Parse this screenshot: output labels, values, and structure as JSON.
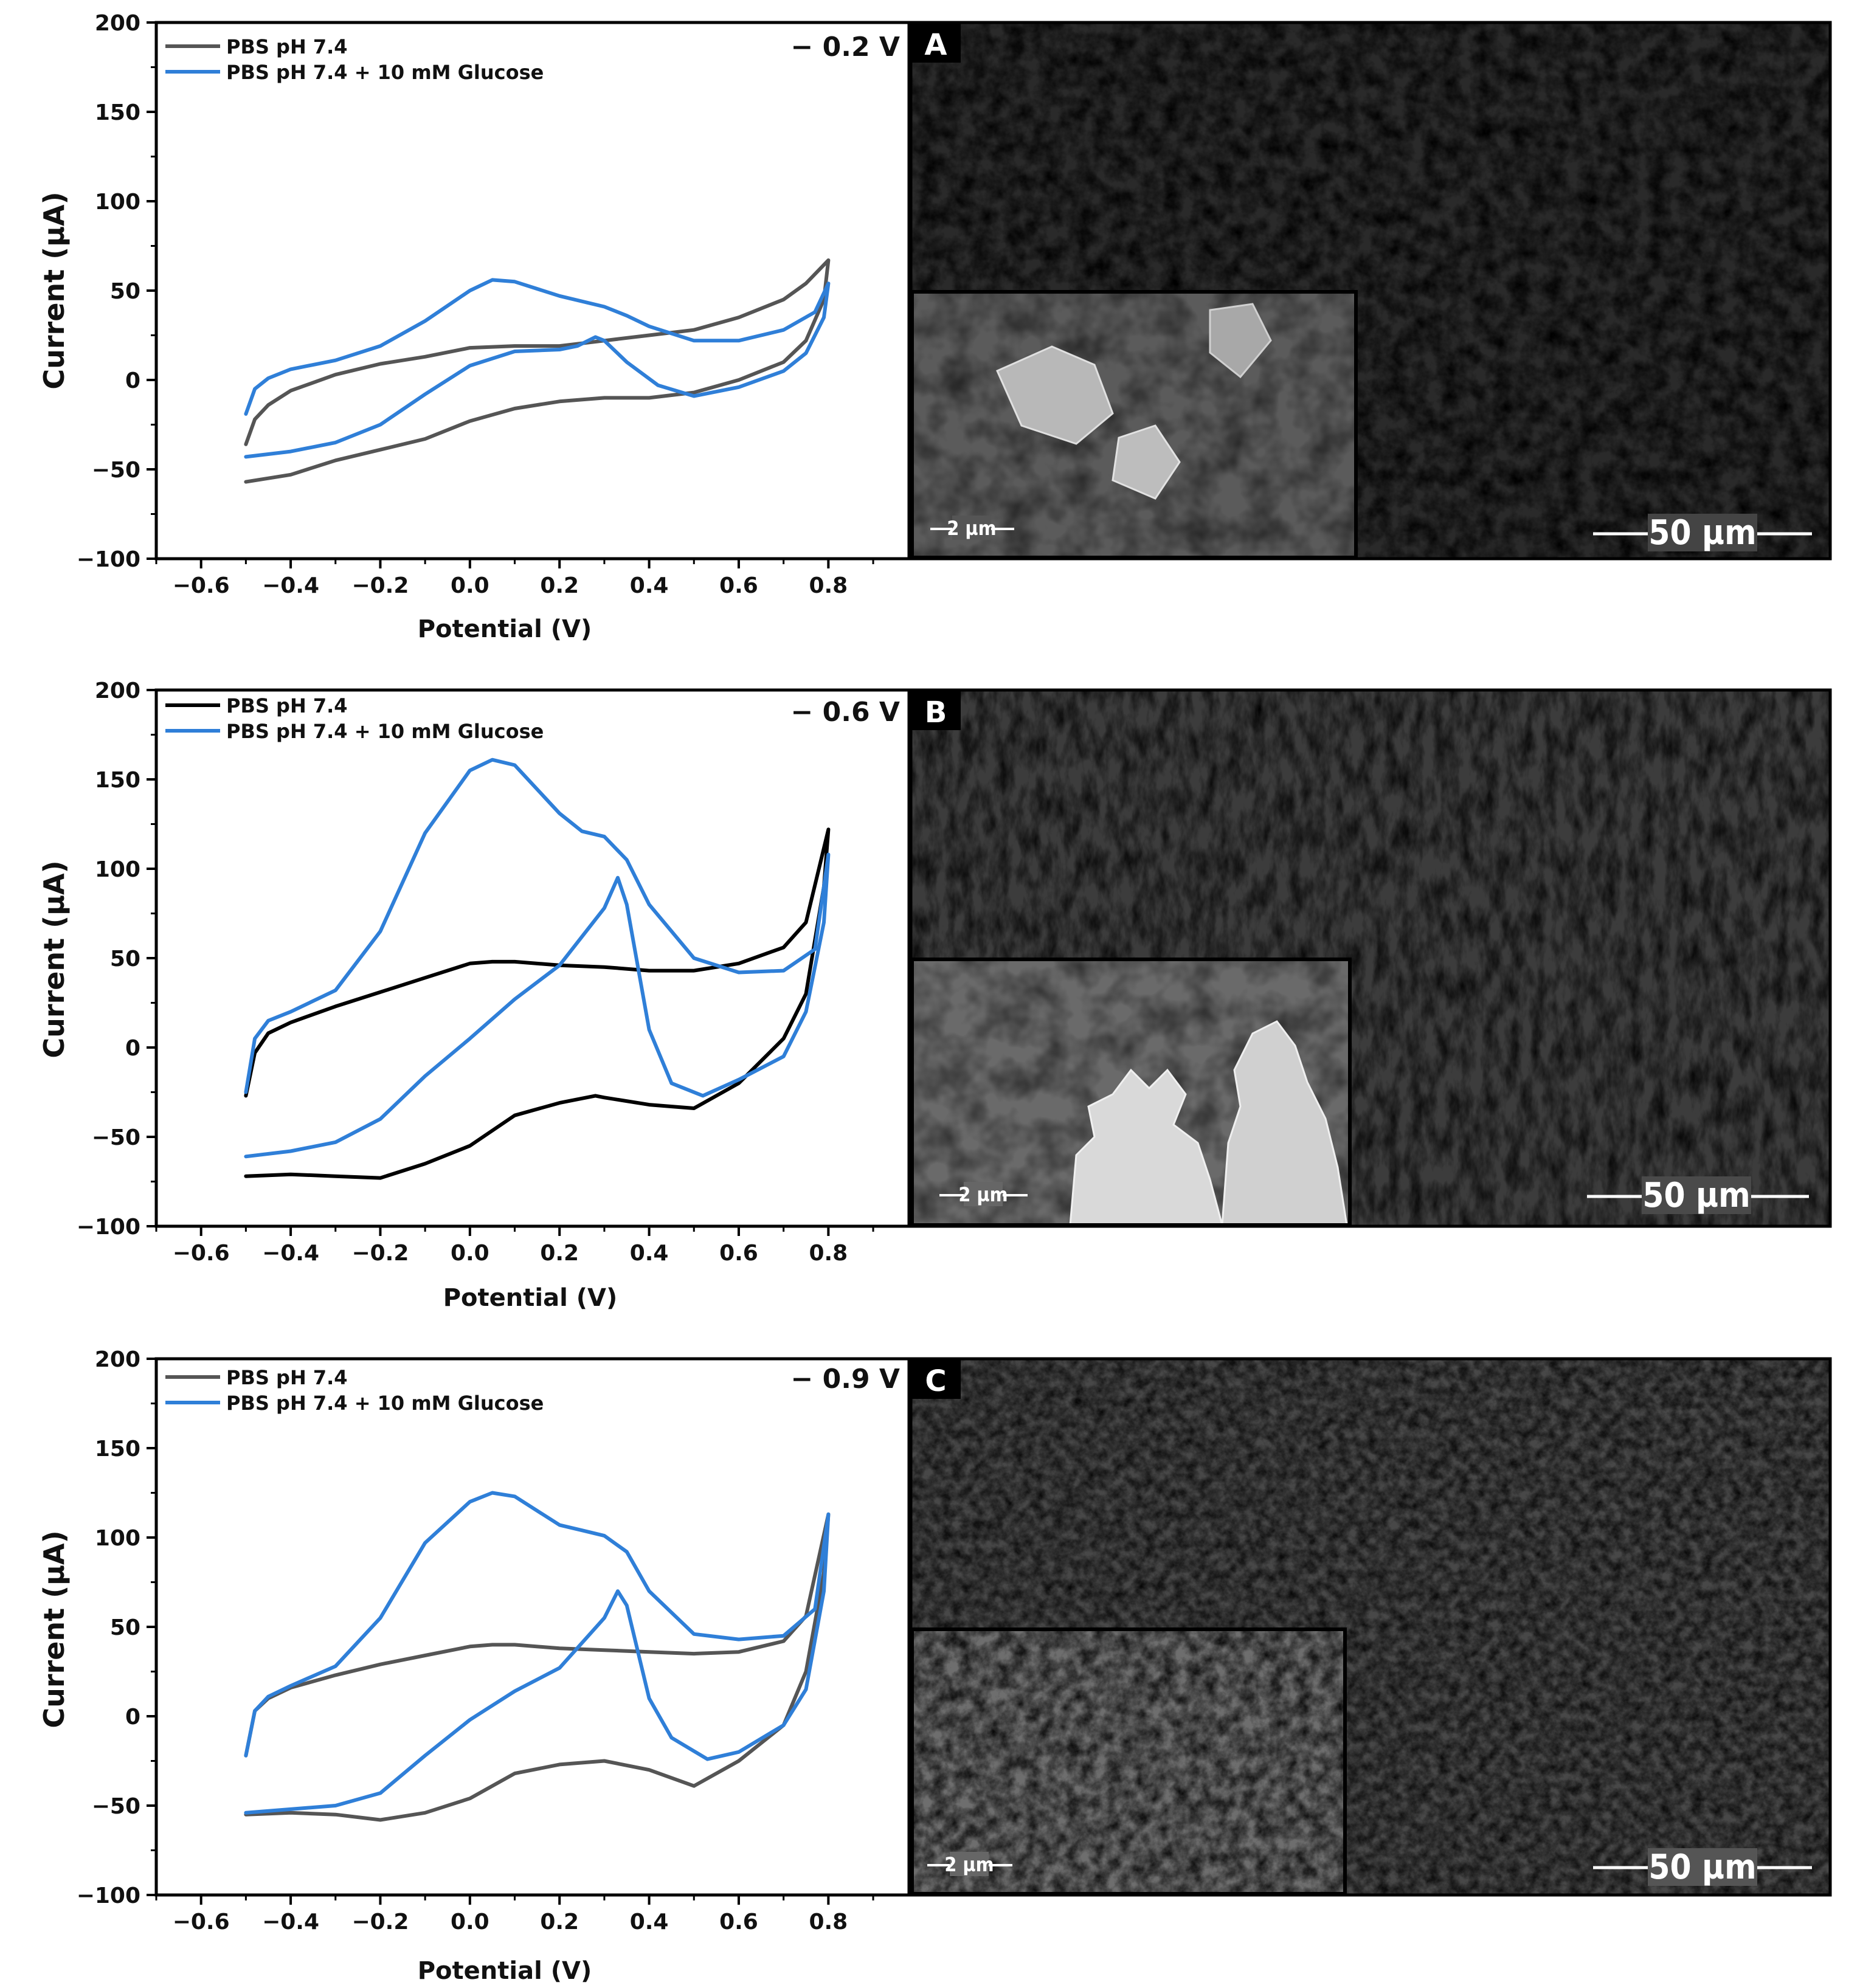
{
  "colors": {
    "pbs_series": "#555555",
    "glucose_series": "#2f7fd8",
    "axis": "#000000"
  },
  "chart_data": [
    {
      "type": "line",
      "panel": "A",
      "annotation": "− 0.2 V",
      "xlabel": "Potential (V)",
      "ylabel": "Current (µA)",
      "xlim": [
        -0.7,
        0.98
      ],
      "ylim": [
        -100,
        200
      ],
      "xticks": [
        "−0.6",
        "−0.4",
        "−0.2",
        "0.0",
        "0.2",
        "0.4",
        "0.6",
        "0.8"
      ],
      "yticks": [
        "−100",
        "−50",
        "0",
        "50",
        "100",
        "150",
        "200"
      ],
      "legend_position": "top-left",
      "series": [
        {
          "name": "PBS pH 7.4",
          "color": "#555555",
          "points": [
            [
              -0.5,
              -36
            ],
            [
              -0.48,
              -22
            ],
            [
              -0.45,
              -14
            ],
            [
              -0.4,
              -6
            ],
            [
              -0.3,
              3
            ],
            [
              -0.2,
              9
            ],
            [
              -0.1,
              13
            ],
            [
              0.0,
              18
            ],
            [
              0.1,
              19
            ],
            [
              0.2,
              19
            ],
            [
              0.3,
              22
            ],
            [
              0.4,
              25
            ],
            [
              0.5,
              28
            ],
            [
              0.6,
              35
            ],
            [
              0.7,
              45
            ],
            [
              0.75,
              54
            ],
            [
              0.8,
              67
            ],
            [
              0.79,
              45
            ],
            [
              0.75,
              22
            ],
            [
              0.7,
              10
            ],
            [
              0.6,
              0
            ],
            [
              0.5,
              -7
            ],
            [
              0.4,
              -10
            ],
            [
              0.3,
              -10
            ],
            [
              0.2,
              -12
            ],
            [
              0.1,
              -16
            ],
            [
              0.0,
              -23
            ],
            [
              -0.1,
              -33
            ],
            [
              -0.2,
              -39
            ],
            [
              -0.3,
              -45
            ],
            [
              -0.4,
              -53
            ],
            [
              -0.5,
              -57
            ]
          ]
        },
        {
          "name": "PBS pH 7.4 + 10 mM Glucose",
          "color": "#2f7fd8",
          "points": [
            [
              -0.5,
              -19
            ],
            [
              -0.48,
              -5
            ],
            [
              -0.45,
              1
            ],
            [
              -0.4,
              6
            ],
            [
              -0.3,
              11
            ],
            [
              -0.2,
              19
            ],
            [
              -0.1,
              33
            ],
            [
              0.0,
              50
            ],
            [
              0.05,
              56
            ],
            [
              0.1,
              55
            ],
            [
              0.2,
              47
            ],
            [
              0.3,
              41
            ],
            [
              0.35,
              36
            ],
            [
              0.4,
              30
            ],
            [
              0.5,
              22
            ],
            [
              0.6,
              22
            ],
            [
              0.7,
              28
            ],
            [
              0.77,
              38
            ],
            [
              0.8,
              54
            ],
            [
              0.79,
              35
            ],
            [
              0.75,
              15
            ],
            [
              0.7,
              5
            ],
            [
              0.6,
              -4
            ],
            [
              0.5,
              -9
            ],
            [
              0.42,
              -3
            ],
            [
              0.35,
              10
            ],
            [
              0.3,
              22
            ],
            [
              0.28,
              24
            ],
            [
              0.24,
              19
            ],
            [
              0.2,
              17
            ],
            [
              0.1,
              16
            ],
            [
              0.0,
              8
            ],
            [
              -0.1,
              -8
            ],
            [
              -0.2,
              -25
            ],
            [
              -0.3,
              -35
            ],
            [
              -0.4,
              -40
            ],
            [
              -0.5,
              -43
            ]
          ]
        }
      ],
      "inset_scale": "2 µm",
      "image_scale": "50 µm"
    },
    {
      "type": "line",
      "panel": "B",
      "annotation": "− 0.6 V",
      "xlabel": "Potential (V)",
      "ylabel": "Current (µA)",
      "xlim": [
        -0.7,
        0.98
      ],
      "ylim": [
        -100,
        200
      ],
      "xticks": [
        "−0.6",
        "−0.4",
        "−0.2",
        "0.0",
        "0.2",
        "0.4",
        "0.6",
        "0.8"
      ],
      "yticks": [
        "−100",
        "−50",
        "0",
        "50",
        "100",
        "150",
        "200"
      ],
      "legend_position": "top-left",
      "series": [
        {
          "name": "PBS pH 7.4",
          "color": "#000000",
          "points": [
            [
              -0.5,
              -27
            ],
            [
              -0.48,
              -3
            ],
            [
              -0.45,
              8
            ],
            [
              -0.4,
              14
            ],
            [
              -0.3,
              23
            ],
            [
              -0.2,
              31
            ],
            [
              -0.1,
              39
            ],
            [
              0.0,
              47
            ],
            [
              0.05,
              48
            ],
            [
              0.1,
              48
            ],
            [
              0.2,
              46
            ],
            [
              0.3,
              45
            ],
            [
              0.4,
              43
            ],
            [
              0.5,
              43
            ],
            [
              0.6,
              47
            ],
            [
              0.7,
              56
            ],
            [
              0.75,
              70
            ],
            [
              0.8,
              122
            ],
            [
              0.79,
              90
            ],
            [
              0.75,
              30
            ],
            [
              0.7,
              5
            ],
            [
              0.6,
              -20
            ],
            [
              0.5,
              -34
            ],
            [
              0.4,
              -32
            ],
            [
              0.3,
              -28
            ],
            [
              0.28,
              -27
            ],
            [
              0.2,
              -31
            ],
            [
              0.1,
              -38
            ],
            [
              0.0,
              -55
            ],
            [
              -0.1,
              -65
            ],
            [
              -0.2,
              -73
            ],
            [
              -0.3,
              -72
            ],
            [
              -0.4,
              -71
            ],
            [
              -0.5,
              -72
            ]
          ]
        },
        {
          "name": "PBS pH 7.4 + 10 mM Glucose",
          "color": "#2f7fd8",
          "points": [
            [
              -0.5,
              -25
            ],
            [
              -0.48,
              5
            ],
            [
              -0.45,
              15
            ],
            [
              -0.4,
              20
            ],
            [
              -0.3,
              32
            ],
            [
              -0.2,
              65
            ],
            [
              -0.1,
              120
            ],
            [
              0.0,
              155
            ],
            [
              0.05,
              161
            ],
            [
              0.1,
              158
            ],
            [
              0.2,
              131
            ],
            [
              0.25,
              121
            ],
            [
              0.3,
              118
            ],
            [
              0.35,
              105
            ],
            [
              0.4,
              80
            ],
            [
              0.5,
              50
            ],
            [
              0.6,
              42
            ],
            [
              0.7,
              43
            ],
            [
              0.77,
              55
            ],
            [
              0.8,
              108
            ],
            [
              0.79,
              70
            ],
            [
              0.75,
              20
            ],
            [
              0.7,
              -5
            ],
            [
              0.6,
              -18
            ],
            [
              0.52,
              -27
            ],
            [
              0.45,
              -20
            ],
            [
              0.4,
              10
            ],
            [
              0.35,
              80
            ],
            [
              0.33,
              95
            ],
            [
              0.3,
              78
            ],
            [
              0.2,
              46
            ],
            [
              0.1,
              27
            ],
            [
              0.0,
              5
            ],
            [
              -0.1,
              -16
            ],
            [
              -0.2,
              -40
            ],
            [
              -0.3,
              -53
            ],
            [
              -0.4,
              -58
            ],
            [
              -0.5,
              -61
            ]
          ]
        }
      ],
      "inset_scale": "2 µm",
      "image_scale": "50 µm"
    },
    {
      "type": "line",
      "panel": "C",
      "annotation": "− 0.9 V",
      "xlabel": "Potential (V)",
      "ylabel": "Current (µA)",
      "xlim": [
        -0.7,
        0.98
      ],
      "ylim": [
        -100,
        200
      ],
      "xticks": [
        "−0.6",
        "−0.4",
        "−0.2",
        "0.0",
        "0.2",
        "0.4",
        "0.6",
        "0.8"
      ],
      "yticks": [
        "−100",
        "−50",
        "0",
        "50",
        "100",
        "150",
        "200"
      ],
      "legend_position": "top-left",
      "series": [
        {
          "name": "PBS pH 7.4",
          "color": "#555555",
          "points": [
            [
              -0.5,
              -22
            ],
            [
              -0.48,
              3
            ],
            [
              -0.45,
              10
            ],
            [
              -0.4,
              16
            ],
            [
              -0.3,
              23
            ],
            [
              -0.2,
              29
            ],
            [
              -0.1,
              34
            ],
            [
              0.0,
              39
            ],
            [
              0.05,
              40
            ],
            [
              0.1,
              40
            ],
            [
              0.2,
              38
            ],
            [
              0.3,
              37
            ],
            [
              0.4,
              36
            ],
            [
              0.5,
              35
            ],
            [
              0.6,
              36
            ],
            [
              0.7,
              42
            ],
            [
              0.75,
              56
            ],
            [
              0.8,
              113
            ],
            [
              0.79,
              80
            ],
            [
              0.75,
              25
            ],
            [
              0.7,
              -5
            ],
            [
              0.6,
              -25
            ],
            [
              0.5,
              -39
            ],
            [
              0.4,
              -30
            ],
            [
              0.3,
              -25
            ],
            [
              0.2,
              -27
            ],
            [
              0.1,
              -32
            ],
            [
              0.0,
              -46
            ],
            [
              -0.1,
              -54
            ],
            [
              -0.2,
              -58
            ],
            [
              -0.3,
              -55
            ],
            [
              -0.4,
              -54
            ],
            [
              -0.5,
              -55
            ]
          ]
        },
        {
          "name": "PBS pH 7.4 + 10 mM Glucose",
          "color": "#2f7fd8",
          "points": [
            [
              -0.5,
              -22
            ],
            [
              -0.48,
              3
            ],
            [
              -0.45,
              11
            ],
            [
              -0.4,
              17
            ],
            [
              -0.3,
              28
            ],
            [
              -0.2,
              55
            ],
            [
              -0.1,
              97
            ],
            [
              0.0,
              120
            ],
            [
              0.05,
              125
            ],
            [
              0.1,
              123
            ],
            [
              0.2,
              107
            ],
            [
              0.25,
              104
            ],
            [
              0.3,
              101
            ],
            [
              0.35,
              92
            ],
            [
              0.4,
              70
            ],
            [
              0.5,
              46
            ],
            [
              0.6,
              43
            ],
            [
              0.7,
              45
            ],
            [
              0.77,
              60
            ],
            [
              0.8,
              113
            ],
            [
              0.79,
              70
            ],
            [
              0.75,
              15
            ],
            [
              0.7,
              -5
            ],
            [
              0.6,
              -20
            ],
            [
              0.53,
              -24
            ],
            [
              0.45,
              -12
            ],
            [
              0.4,
              10
            ],
            [
              0.35,
              62
            ],
            [
              0.33,
              70
            ],
            [
              0.3,
              55
            ],
            [
              0.2,
              27
            ],
            [
              0.1,
              14
            ],
            [
              0.0,
              -2
            ],
            [
              -0.1,
              -22
            ],
            [
              -0.2,
              -43
            ],
            [
              -0.3,
              -50
            ],
            [
              -0.4,
              -52
            ],
            [
              -0.5,
              -54
            ]
          ]
        }
      ],
      "inset_scale": "2 µm",
      "image_scale": "50 µm"
    }
  ]
}
